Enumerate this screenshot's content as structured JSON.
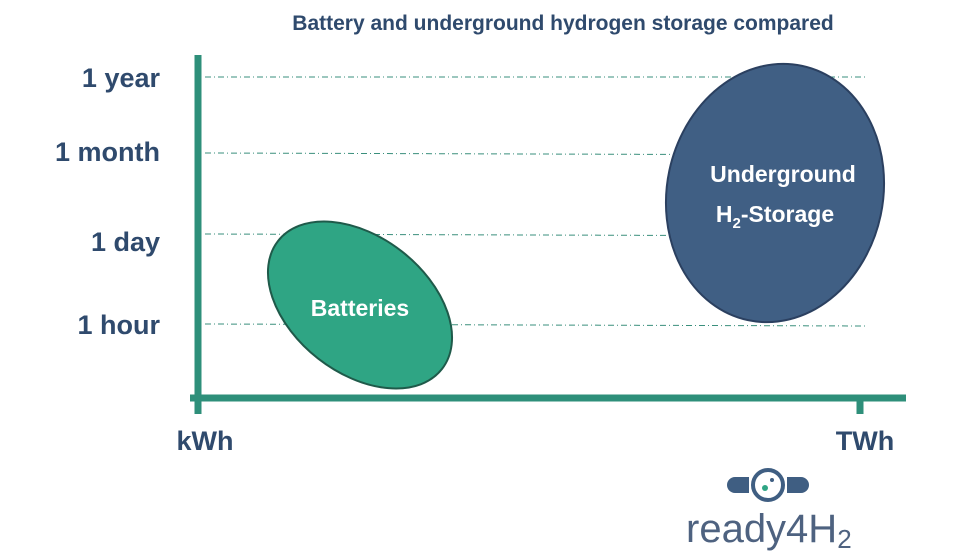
{
  "header": {
    "title": "Battery and underground hydrogen storage compared"
  },
  "y_axis": {
    "labels": [
      "1 year",
      "1 month",
      "1 day",
      "1 hour"
    ]
  },
  "x_axis": {
    "labels": [
      "kWh",
      "TWh"
    ]
  },
  "regions": [
    {
      "lines": [
        "Batteries"
      ]
    },
    {
      "lines": [
        "Underground"
      ],
      "line2": {
        "main": "H",
        "subscript": "2",
        "rest": "-Storage"
      }
    }
  ],
  "logo": {
    "text": "ready4H",
    "subscript": "2"
  }
}
